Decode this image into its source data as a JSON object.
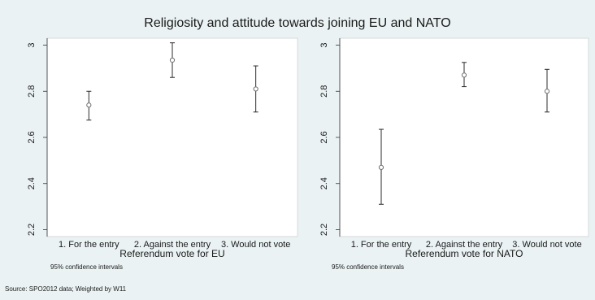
{
  "figure": {
    "title": "Religiosity and attitude towards joining EU and NATO",
    "source": "Source: SPO2012 data; Weighted by W11",
    "colors": {
      "background": "#eaf2f3",
      "plot_area": "#ffffff",
      "marker": "#6e6e6e",
      "whisker": "#2b2b2b",
      "text": "#1a1a1a"
    }
  },
  "chart_data": [
    {
      "type": "scatter",
      "style": "point estimates with 95% confidence interval error bars",
      "xlabel": "Referendum vote for EU",
      "note": "95% confidence intervals",
      "categories": [
        "1. For the entry",
        "2. Against the entry",
        "3. Would not vote"
      ],
      "y_ticks": [
        "2.2",
        "2.4",
        "2.6",
        "2.8",
        "3"
      ],
      "ylim": [
        2.17,
        3.03
      ],
      "grid": false,
      "points": [
        {
          "category": "1. For the entry",
          "mean": 2.74,
          "ci_low": 2.675,
          "ci_high": 2.8
        },
        {
          "category": "2. Against the entry",
          "mean": 2.935,
          "ci_low": 2.86,
          "ci_high": 3.01
        },
        {
          "category": "3. Would not vote",
          "mean": 2.81,
          "ci_low": 2.71,
          "ci_high": 2.91
        }
      ]
    },
    {
      "type": "scatter",
      "style": "point estimates with 95% confidence interval error bars",
      "xlabel": "Referendum vote for NATO",
      "note": "95% confidence intervals",
      "categories": [
        "1. For the entry",
        "2. Against the entry",
        "3. Would not vote"
      ],
      "y_ticks": [
        "2.2",
        "2.4",
        "2.6",
        "2.8",
        "3"
      ],
      "ylim": [
        2.17,
        3.03
      ],
      "grid": false,
      "points": [
        {
          "category": "1. For the entry",
          "mean": 2.47,
          "ci_low": 2.31,
          "ci_high": 2.635
        },
        {
          "category": "2. Against the entry",
          "mean": 2.87,
          "ci_low": 2.82,
          "ci_high": 2.925
        },
        {
          "category": "3. Would not vote",
          "mean": 2.8,
          "ci_low": 2.71,
          "ci_high": 2.895
        }
      ]
    }
  ]
}
